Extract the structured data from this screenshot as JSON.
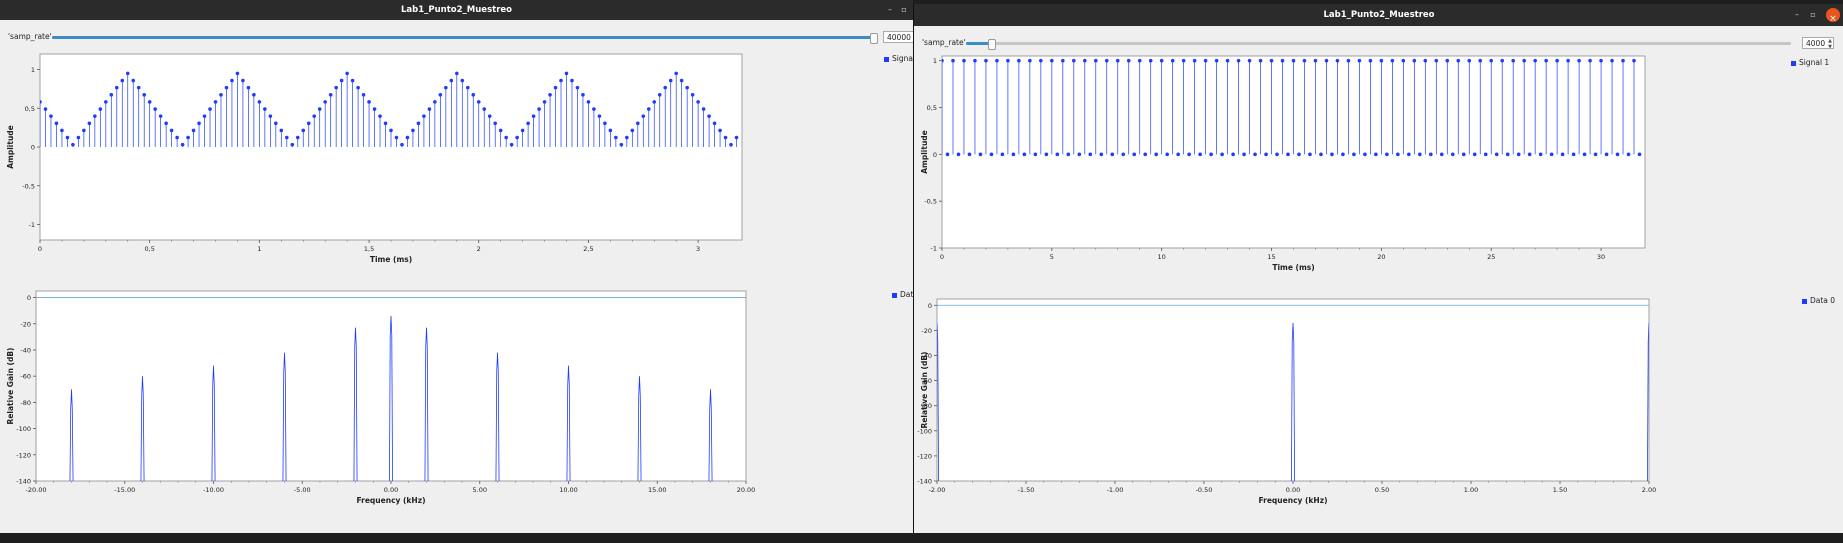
{
  "windows": [
    {
      "id": "win1",
      "title": "Lab1_Punto2_Muestreo",
      "controls": {
        "min": "–",
        "max": "▫",
        "close": ""
      },
      "samp_rate": {
        "label": "'samp_rate'",
        "value": "40000",
        "fraction": 0.995
      },
      "time_plot": {
        "ylabel": "Amplitude",
        "xlabel": "Time (ms)",
        "legend": "Signal"
      },
      "freq_plot": {
        "ylabel": "Relative Gain (dB)",
        "xlabel": "Frequency (kHz)",
        "legend": "Data"
      }
    },
    {
      "id": "win2",
      "title": "Lab1_Punto2_Muestreo",
      "controls": {
        "min": "–",
        "max": "▫",
        "close": "×"
      },
      "samp_rate": {
        "label": "'samp_rate'",
        "value": "4000",
        "fraction": 0.03
      },
      "time_plot": {
        "ylabel": "Amplitude",
        "xlabel": "Time (ms)",
        "legend": "Signal 1"
      },
      "freq_plot": {
        "ylabel": "Relative Gain (dB)",
        "xlabel": "Frequency (kHz)",
        "legend": "Data 0"
      }
    }
  ],
  "chart_data": [
    {
      "id": "w1-time",
      "type": "stem",
      "xlabel": "Time (ms)",
      "ylabel": "Amplitude",
      "xlim": [
        0,
        3.2
      ],
      "ylim": [
        -1.2,
        1.2
      ],
      "xticks": [
        "0",
        "0,5",
        "1",
        "1,5",
        "2",
        "2,5",
        "3"
      ],
      "xtick_values": [
        0,
        0.5,
        1,
        1.5,
        2,
        2.5,
        3
      ],
      "yticks": [
        "-1",
        "-0,5",
        "0",
        "0,5",
        "1"
      ],
      "ytick_values": [
        -1,
        -0.5,
        0,
        0.5,
        1
      ],
      "series": [
        {
          "name": "Signal",
          "sample_interval_ms": 0.025,
          "samples": 128,
          "peak": 0.95,
          "trough": 0.03,
          "period_ms": 0.5,
          "first_peak_ms": 0.4
        }
      ]
    },
    {
      "id": "w1-freq",
      "type": "line",
      "xlabel": "Frequency (kHz)",
      "ylabel": "Relative Gain (dB)",
      "xlim": [
        -20,
        20
      ],
      "ylim": [
        -140,
        5
      ],
      "xticks": [
        "-20.00",
        "-15.00",
        "-10.00",
        "-5.00",
        "0.00",
        "5.00",
        "10.00",
        "15.00",
        "20.00"
      ],
      "xtick_values": [
        -20,
        -15,
        -10,
        -5,
        0,
        5,
        10,
        15,
        20
      ],
      "yticks": [
        "0",
        "-20",
        "-40",
        "-60",
        "-80",
        "-100",
        "-120",
        "-140"
      ],
      "ytick_values": [
        0,
        -20,
        -40,
        -60,
        -80,
        -100,
        -120,
        -140
      ],
      "reference_level": 0,
      "series": [
        {
          "name": "Data",
          "peaks": [
            {
              "x": -18,
              "y": -70
            },
            {
              "x": -14,
              "y": -60
            },
            {
              "x": -10,
              "y": -52
            },
            {
              "x": -6,
              "y": -42
            },
            {
              "x": -2,
              "y": -23
            },
            {
              "x": 0,
              "y": -14
            },
            {
              "x": 2,
              "y": -23
            },
            {
              "x": 6,
              "y": -42
            },
            {
              "x": 10,
              "y": -52
            },
            {
              "x": 14,
              "y": -60
            },
            {
              "x": 18,
              "y": -70
            }
          ]
        }
      ]
    },
    {
      "id": "w2-time",
      "type": "stem",
      "xlabel": "Time (ms)",
      "ylabel": "Amplitude",
      "xlim": [
        0,
        32
      ],
      "ylim": [
        -1,
        1.05
      ],
      "xticks": [
        "0",
        "5",
        "10",
        "15",
        "20",
        "25",
        "30"
      ],
      "xtick_values": [
        0,
        5,
        10,
        15,
        20,
        25,
        30
      ],
      "yticks": [
        "-1",
        "-0,5",
        "0",
        "0,5",
        "1"
      ],
      "ytick_values": [
        -1,
        -0.5,
        0,
        0.5,
        1
      ],
      "series": [
        {
          "name": "Signal 1",
          "sample_interval_ms": 0.25,
          "samples": 128,
          "alternating": [
            1,
            0
          ]
        }
      ]
    },
    {
      "id": "w2-freq",
      "type": "line",
      "xlabel": "Frequency (kHz)",
      "ylabel": "Relative Gain (dB)",
      "xlim": [
        -2,
        2
      ],
      "ylim": [
        -140,
        5
      ],
      "xticks": [
        "-2.00",
        "-1.50",
        "-1.00",
        "-0.50",
        "0.00",
        "0.50",
        "1.00",
        "1.50",
        "2.00"
      ],
      "xtick_values": [
        -2,
        -1.5,
        -1,
        -0.5,
        0,
        0.5,
        1,
        1.5,
        2
      ],
      "yticks": [
        "0",
        "-20",
        "-40",
        "-60",
        "-80",
        "-100",
        "-120",
        "-140"
      ],
      "ytick_values": [
        0,
        -20,
        -40,
        -60,
        -80,
        -100,
        -120,
        -140
      ],
      "reference_level": 0,
      "series": [
        {
          "name": "Data 0",
          "peaks": [
            {
              "x": -2,
              "y": -14
            },
            {
              "x": 0,
              "y": -14
            },
            {
              "x": 2,
              "y": -14
            }
          ]
        }
      ]
    }
  ]
}
